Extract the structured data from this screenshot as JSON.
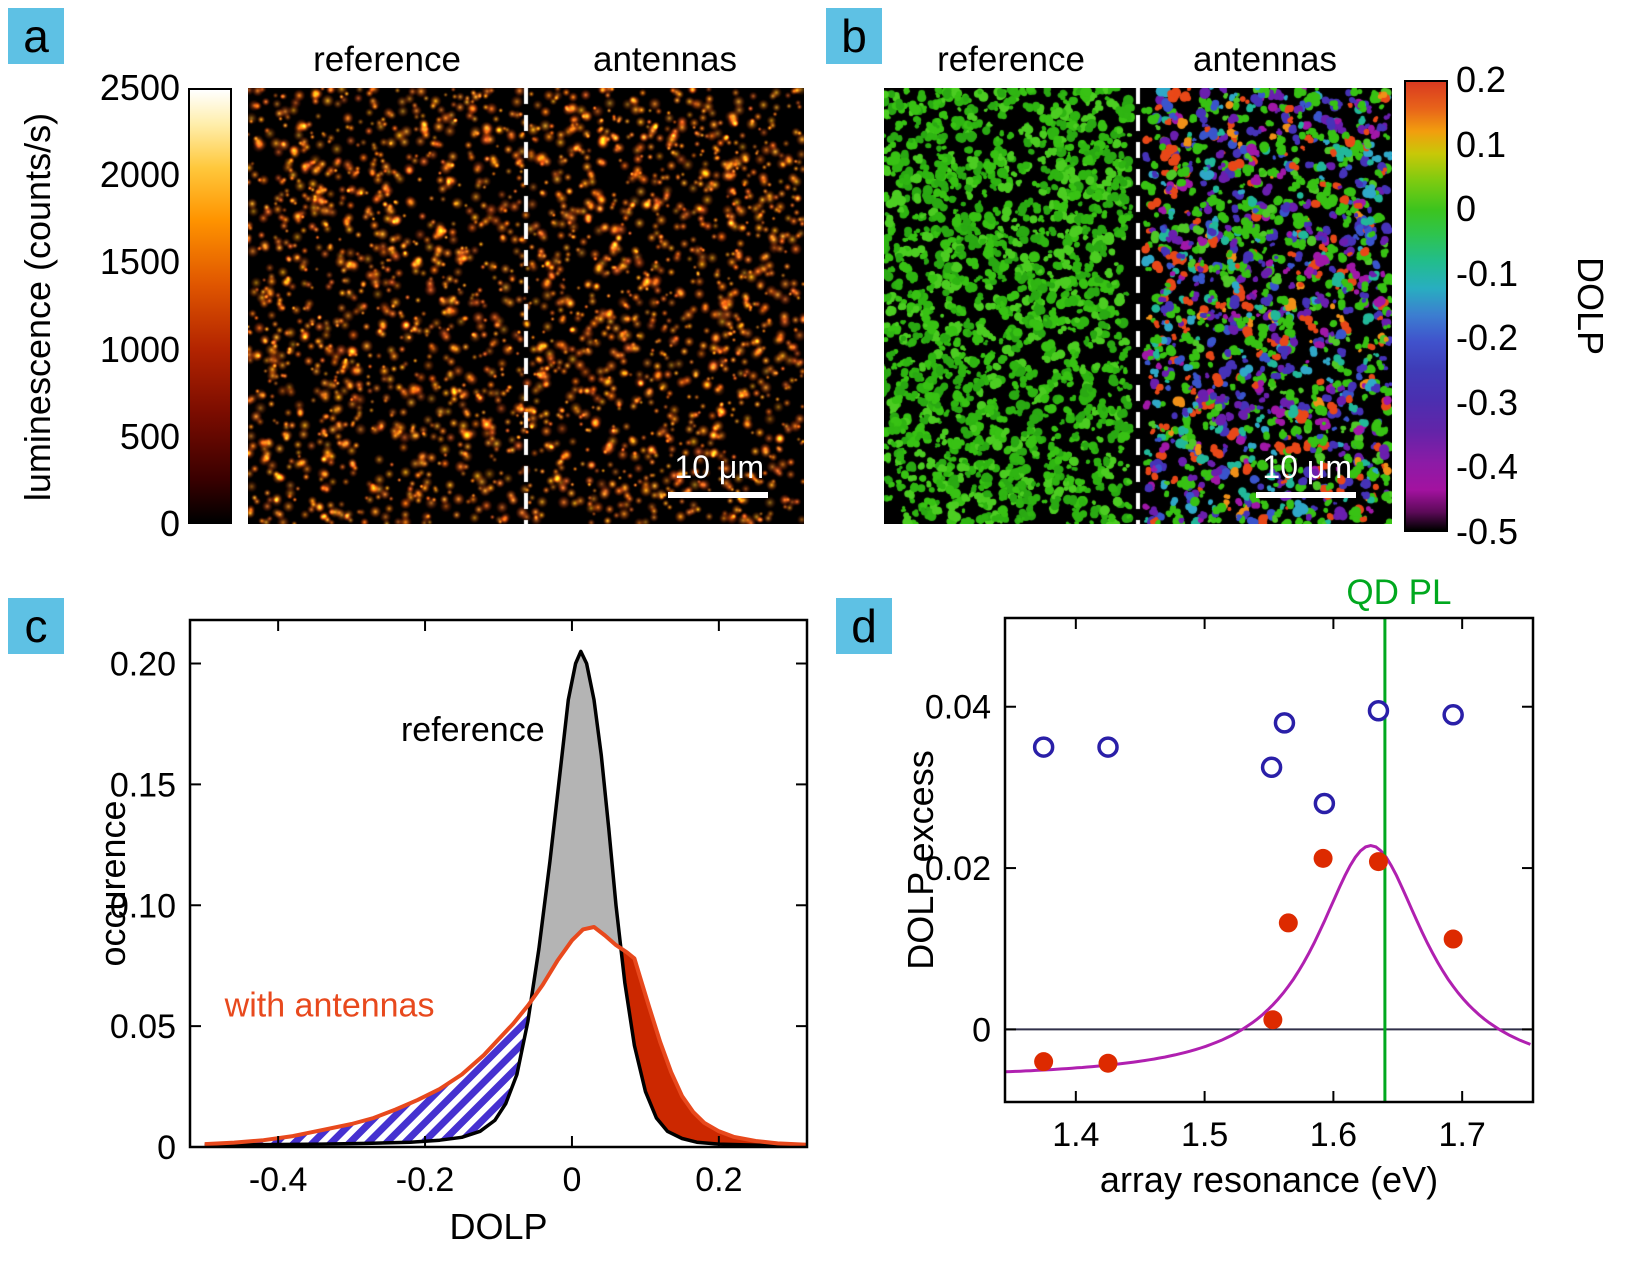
{
  "panel_labels": {
    "a": "a",
    "b": "b",
    "c": "c",
    "d": "d"
  },
  "ui_colors": {
    "panel_label_bg": "#5ec1e4",
    "scalebar": "#ffffff"
  },
  "panel_a": {
    "axis_title": "luminescence (counts/s)",
    "colorbar_ticks": [
      "2500",
      "2000",
      "1500",
      "1000",
      "500",
      "0"
    ],
    "region_left": "reference",
    "region_right": "antennas",
    "scalebar_label": "10 μm"
  },
  "panel_b": {
    "axis_title": "DOLP",
    "colorbar_ticks": [
      "0.2",
      "0.1",
      "0",
      "-0.1",
      "-0.2",
      "-0.3",
      "-0.4",
      "-0.5"
    ],
    "region_left": "reference",
    "region_right": "antennas",
    "scalebar_label": "10 μm",
    "left_palette": [
      "#38c214",
      "#2fb512",
      "#4ccd22",
      "#2aa913"
    ],
    "right_palette": [
      [
        "#38c214",
        30
      ],
      [
        "#6a1fae",
        13
      ],
      [
        "#4633b8",
        12
      ],
      [
        "#3a55cc",
        7
      ],
      [
        "#22b89a",
        6
      ],
      [
        "#e84818",
        11
      ],
      [
        "#f09018",
        4
      ],
      [
        "#a018a8",
        6
      ],
      [
        "#30a8c8",
        5
      ],
      [
        "#50c828",
        6
      ]
    ]
  },
  "chart_data": [
    {
      "panel": "c",
      "type": "area",
      "xlabel": "DOLP",
      "ylabel": "occurence",
      "xlim": [
        -0.52,
        0.32
      ],
      "ylim": [
        0,
        0.218
      ],
      "xticks": [
        -0.4,
        -0.2,
        0,
        0.2
      ],
      "xtick_labels": [
        "-0.4",
        "-0.2",
        "0",
        "0.2"
      ],
      "yticks": [
        0,
        0.05,
        0.1,
        0.15,
        0.2
      ],
      "ytick_labels": [
        "0",
        "0.05",
        "0.10",
        "0.15",
        "0.20"
      ],
      "colors": {
        "reference": "#000000",
        "antennas": "#e8491d",
        "gray_fill": "#b4b4b4",
        "red_fill": "#cc2800",
        "hatch": "#4631d0"
      },
      "series": [
        {
          "name": "reference",
          "points": [
            [
              -0.5,
              0.0008
            ],
            [
              -0.42,
              0.001
            ],
            [
              -0.34,
              0.0012
            ],
            [
              -0.28,
              0.0015
            ],
            [
              -0.22,
              0.002
            ],
            [
              -0.18,
              0.0028
            ],
            [
              -0.15,
              0.004
            ],
            [
              -0.125,
              0.0065
            ],
            [
              -0.105,
              0.011
            ],
            [
              -0.09,
              0.018
            ],
            [
              -0.075,
              0.03
            ],
            [
              -0.06,
              0.052
            ],
            [
              -0.045,
              0.082
            ],
            [
              -0.03,
              0.118
            ],
            [
              -0.015,
              0.158
            ],
            [
              -0.005,
              0.185
            ],
            [
              0.005,
              0.2
            ],
            [
              0.012,
              0.205
            ],
            [
              0.02,
              0.2
            ],
            [
              0.03,
              0.185
            ],
            [
              0.04,
              0.162
            ],
            [
              0.05,
              0.132
            ],
            [
              0.06,
              0.1
            ],
            [
              0.072,
              0.068
            ],
            [
              0.085,
              0.042
            ],
            [
              0.1,
              0.023
            ],
            [
              0.115,
              0.012
            ],
            [
              0.13,
              0.0065
            ],
            [
              0.15,
              0.0035
            ],
            [
              0.17,
              0.002
            ],
            [
              0.2,
              0.0012
            ],
            [
              0.25,
              0.0008
            ],
            [
              0.32,
              0.0005
            ]
          ]
        },
        {
          "name": "with antennas",
          "points": [
            [
              -0.5,
              0.0012
            ],
            [
              -0.46,
              0.0018
            ],
            [
              -0.42,
              0.0028
            ],
            [
              -0.38,
              0.0045
            ],
            [
              -0.34,
              0.007
            ],
            [
              -0.3,
              0.0095
            ],
            [
              -0.27,
              0.012
            ],
            [
              -0.24,
              0.0155
            ],
            [
              -0.21,
              0.0195
            ],
            [
              -0.18,
              0.024
            ],
            [
              -0.15,
              0.03
            ],
            [
              -0.12,
              0.038
            ],
            [
              -0.1,
              0.0445
            ],
            [
              -0.08,
              0.051
            ],
            [
              -0.06,
              0.0585
            ],
            [
              -0.04,
              0.067
            ],
            [
              -0.02,
              0.077
            ],
            [
              0.0,
              0.0855
            ],
            [
              0.015,
              0.09
            ],
            [
              0.03,
              0.091
            ],
            [
              0.045,
              0.0875
            ],
            [
              0.06,
              0.0835
            ],
            [
              0.075,
              0.0805
            ],
            [
              0.085,
              0.078
            ],
            [
              0.095,
              0.068
            ],
            [
              0.105,
              0.058
            ],
            [
              0.12,
              0.0435
            ],
            [
              0.135,
              0.031
            ],
            [
              0.15,
              0.021
            ],
            [
              0.165,
              0.0145
            ],
            [
              0.18,
              0.01
            ],
            [
              0.2,
              0.0065
            ],
            [
              0.22,
              0.0042
            ],
            [
              0.25,
              0.0025
            ],
            [
              0.28,
              0.0015
            ],
            [
              0.32,
              0.0009
            ]
          ]
        }
      ],
      "annotations": [
        {
          "text": "reference",
          "x": -0.135,
          "y": 0.168,
          "color": "#000000"
        },
        {
          "text": "with antennas",
          "x": -0.33,
          "y": 0.054,
          "color": "#e8491d"
        }
      ]
    },
    {
      "panel": "d",
      "type": "scatter",
      "xlabel": "array resonance (eV)",
      "ylabel": "DOLP excess",
      "xlim": [
        1.345,
        1.755
      ],
      "ylim": [
        -0.009,
        0.051
      ],
      "xticks": [
        1.4,
        1.5,
        1.6,
        1.7
      ],
      "xtick_labels": [
        "1.4",
        "1.5",
        "1.6",
        "1.7"
      ],
      "yticks": [
        0,
        0.02,
        0.04
      ],
      "ytick_labels": [
        "0",
        "0.02",
        "0.04"
      ],
      "qd_pl_x": 1.64,
      "qd_pl_label": "QD PL",
      "colors": {
        "open_marker": "#2a1fa8",
        "filled_marker": "#dd2a00",
        "fit_curve": "#b020b0",
        "qd_pl": "#00a81e",
        "zero_line": "#30304a"
      },
      "series": [
        {
          "name": "open circles",
          "marker": "open",
          "points": [
            [
              1.375,
              0.035
            ],
            [
              1.425,
              0.035
            ],
            [
              1.552,
              0.0325
            ],
            [
              1.562,
              0.038
            ],
            [
              1.593,
              0.028
            ],
            [
              1.635,
              0.0395
            ],
            [
              1.693,
              0.039
            ]
          ]
        },
        {
          "name": "filled circles",
          "marker": "filled",
          "points": [
            [
              1.375,
              -0.004
            ],
            [
              1.425,
              -0.0042
            ],
            [
              1.553,
              0.0012
            ],
            [
              1.565,
              0.0132
            ],
            [
              1.592,
              0.0212
            ],
            [
              1.635,
              0.0208
            ],
            [
              1.693,
              0.0112
            ]
          ]
        }
      ],
      "fit": {
        "baseline": -0.0062,
        "amplitude": 0.029,
        "center": 1.629,
        "gamma": 0.052
      }
    }
  ]
}
